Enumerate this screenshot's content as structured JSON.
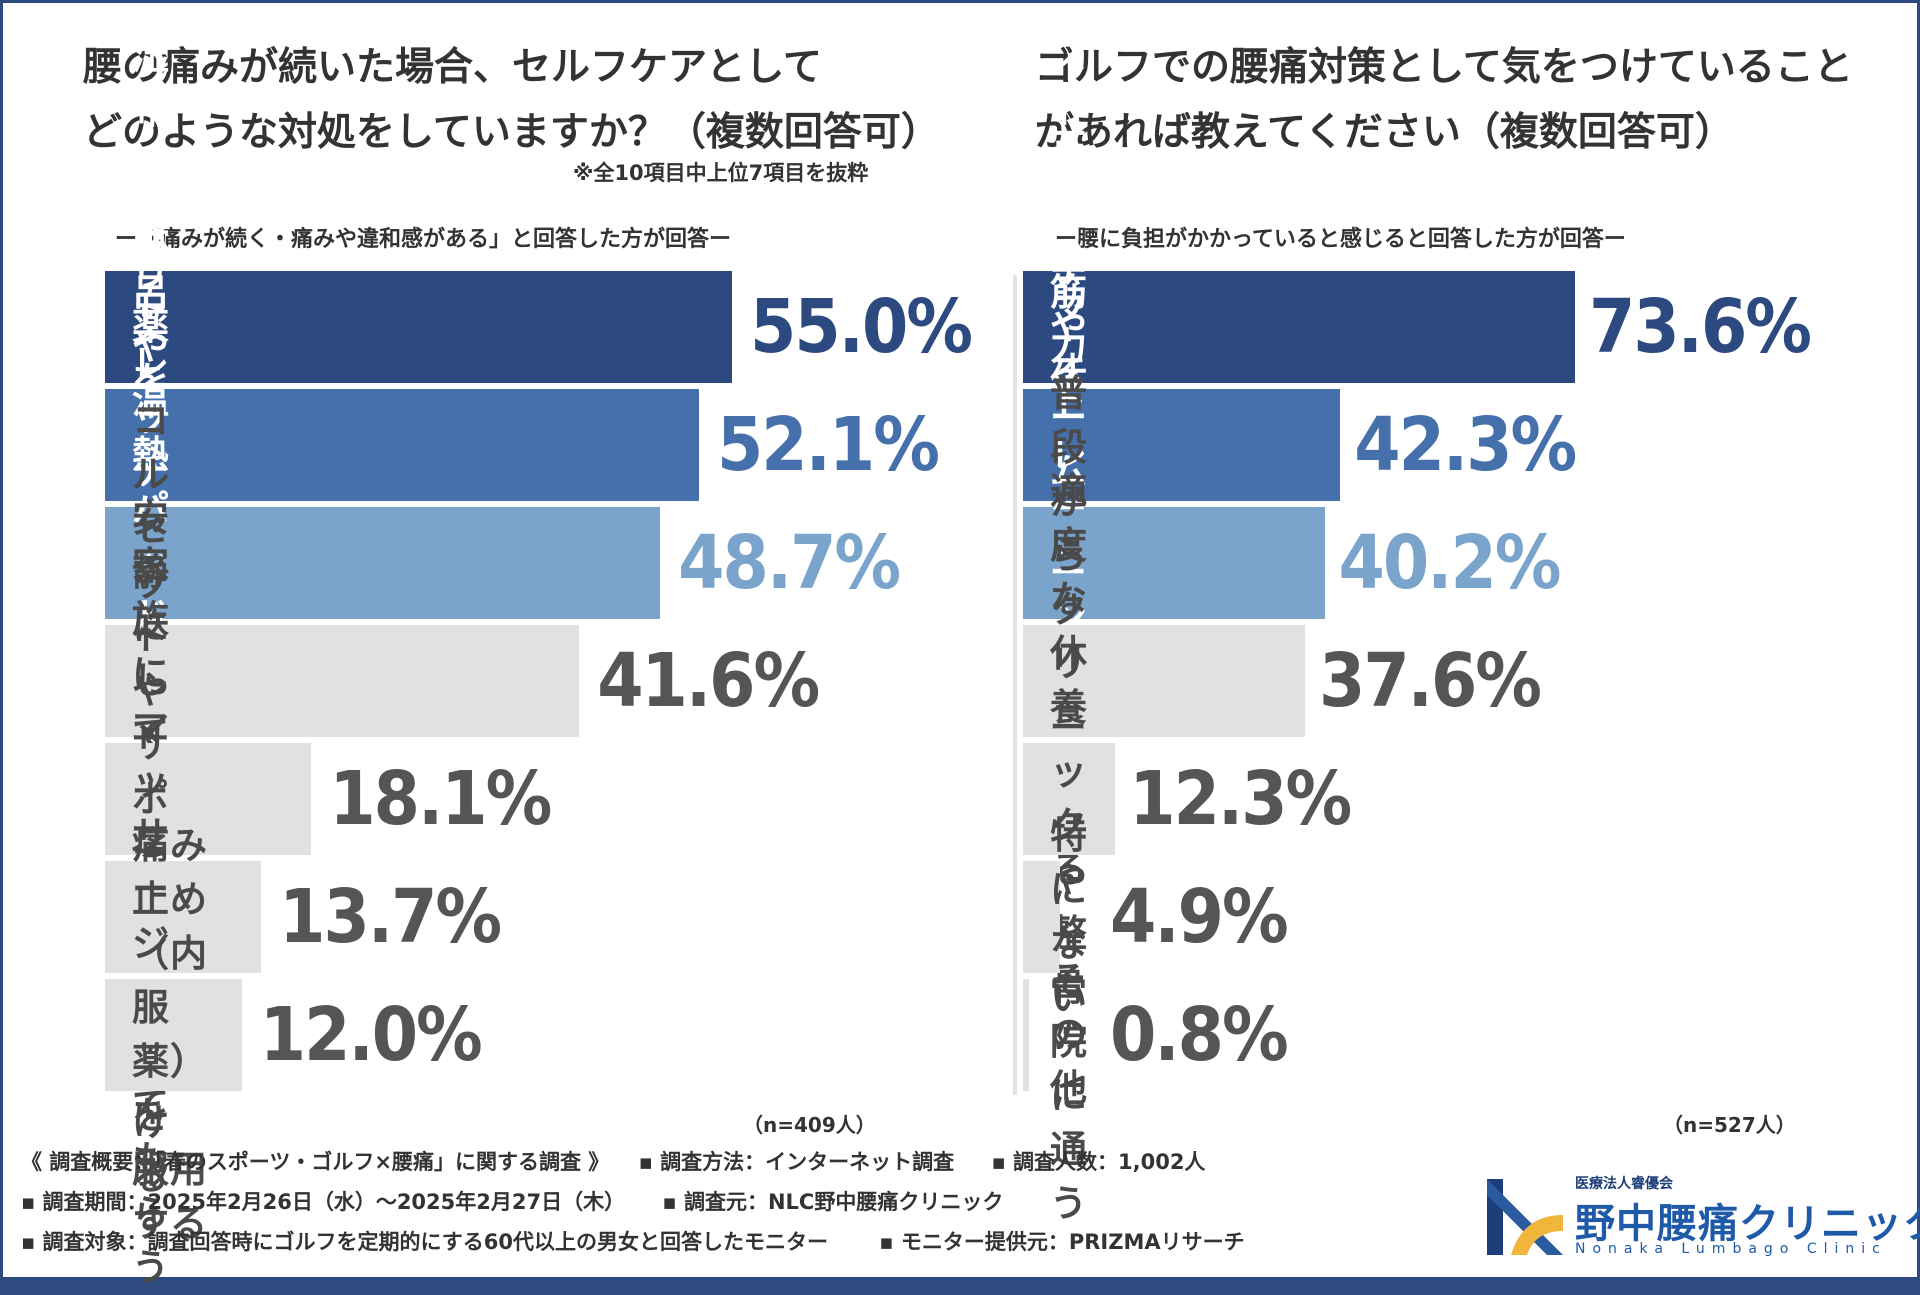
{
  "left": {
    "title_line1": "腰の痛みが続いた場合、セルフケアとして",
    "title_line2": "どのような対処をしていますか？（複数回答可）",
    "note": "※全10項目中上位7項目を抜粋",
    "subtitle": "ー「痛みが続く・痛みや違和感がある」と回答した方が回答ー",
    "n": "（n=409人）"
  },
  "right": {
    "title_line1": "ゴルフでの腰痛対策として気をつけていること",
    "title_line2": "があれば教えてください（複数回答可）",
    "subtitle": "ー腰に負担がかかっていると感じると回答した方が回答ー",
    "n": "（n=527人）"
  },
  "chart_data": [
    {
      "type": "bar",
      "orientation": "horizontal",
      "unit": "%",
      "categories": [
        "湿布や塗り薬を使用する",
        "ストレッチをする",
        "お風呂や温熱パッドなどで温める",
        "安静にして休む",
        "コルセットや\nサポーターをつける",
        "家族にマッサージを\nしてもらう",
        "痛み止め（内服薬）を\n服用する"
      ],
      "values": [
        55.0,
        52.1,
        48.7,
        41.6,
        18.1,
        13.7,
        12.0
      ],
      "value_labels": [
        "55.0%",
        "52.1%",
        "48.7%",
        "41.6%",
        "18.1%",
        "13.7%",
        "12.0%"
      ],
      "bar_colors": [
        "#2d4a80",
        "#4570ab",
        "#7aa4cc",
        "#e1e1e1",
        "#e1e1e1",
        "#e1e1e1",
        "#e1e1e1"
      ],
      "value_colors": [
        "#2d4a80",
        "#4570ab",
        "#7aa4cc",
        "#555555",
        "#555555",
        "#555555",
        "#555555"
      ],
      "label_colors": [
        "#ffffff",
        "#ffffff",
        "#ffffff",
        "#4a4a4a",
        "#4a4a4a",
        "#4a4a4a",
        "#4a4a4a"
      ]
    },
    {
      "type": "bar",
      "orientation": "horizontal",
      "unit": "%",
      "categories": [
        "ストレッチや体操をする",
        "正しいフォームを意識する",
        "筋力トレーニングをする",
        "適度な休養をとる",
        "普段からクリニックや\n整骨院に通う",
        "特にない",
        "その他"
      ],
      "values": [
        73.6,
        42.3,
        40.2,
        37.6,
        12.3,
        4.9,
        0.8
      ],
      "value_labels": [
        "73.6%",
        "42.3%",
        "40.2%",
        "37.6%",
        "12.3%",
        "4.9%",
        "0.8%"
      ],
      "bar_colors": [
        "#2d4a80",
        "#4570ab",
        "#7aa4cc",
        "#e1e1e1",
        "#e1e1e1",
        "#e1e1e1",
        "#e1e1e1"
      ],
      "value_colors": [
        "#2d4a80",
        "#4570ab",
        "#7aa4cc",
        "#555555",
        "#555555",
        "#555555",
        "#555555"
      ],
      "label_colors": [
        "#ffffff",
        "#ffffff",
        "#ffffff",
        "#4a4a4a",
        "#4a4a4a",
        "#4a4a4a",
        "#4a4a4a"
      ]
    }
  ],
  "footer": {
    "l1a": "《 調査概要：「春のスポーツ・ゴルフ×腰痛」に関する調査 》",
    "l1b": "▪ 調査方法：インターネット調査",
    "l1c": "▪ 調査人数：1,002人",
    "l2a": "▪ 調査期間：2025年2月26日（水）～2025年2月27日（木）",
    "l2b": "▪ 調査元：NLC野中腰痛クリニック",
    "l3a": "▪ 調査対象：調査回答時にゴルフを定期的にする60代以上の男女と回答したモニター",
    "l3b": "▪ モニター提供元：PRIZMAリサーチ"
  },
  "logo": {
    "kana": "医療法人睿優会",
    "name": "野中腰痛クリニック",
    "en": "Nonaka Lumbago Clinic"
  }
}
